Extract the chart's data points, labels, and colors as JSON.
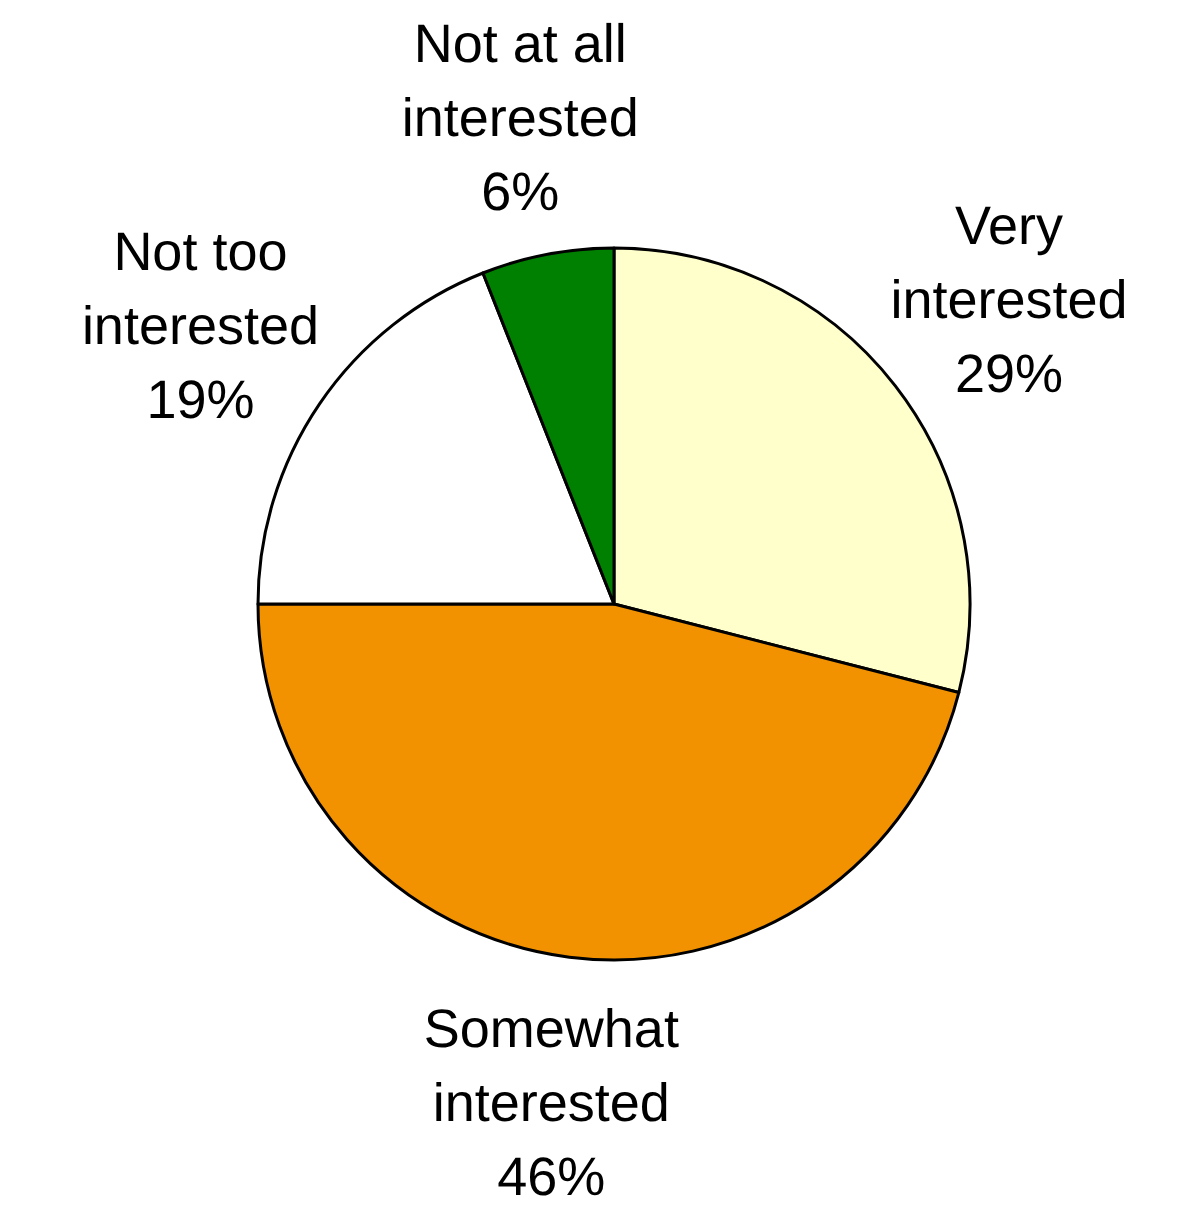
{
  "chart_data": {
    "type": "pie",
    "categories": [
      "Very interested",
      "Somewhat interested",
      "Not too interested",
      "Not at all interested"
    ],
    "values": [
      29,
      46,
      19,
      6
    ],
    "value_labels": [
      "29%",
      "46%",
      "19%",
      "6%"
    ],
    "colors": [
      "#ffffcc",
      "#f39200",
      "#ffffff",
      "#008000"
    ]
  }
}
